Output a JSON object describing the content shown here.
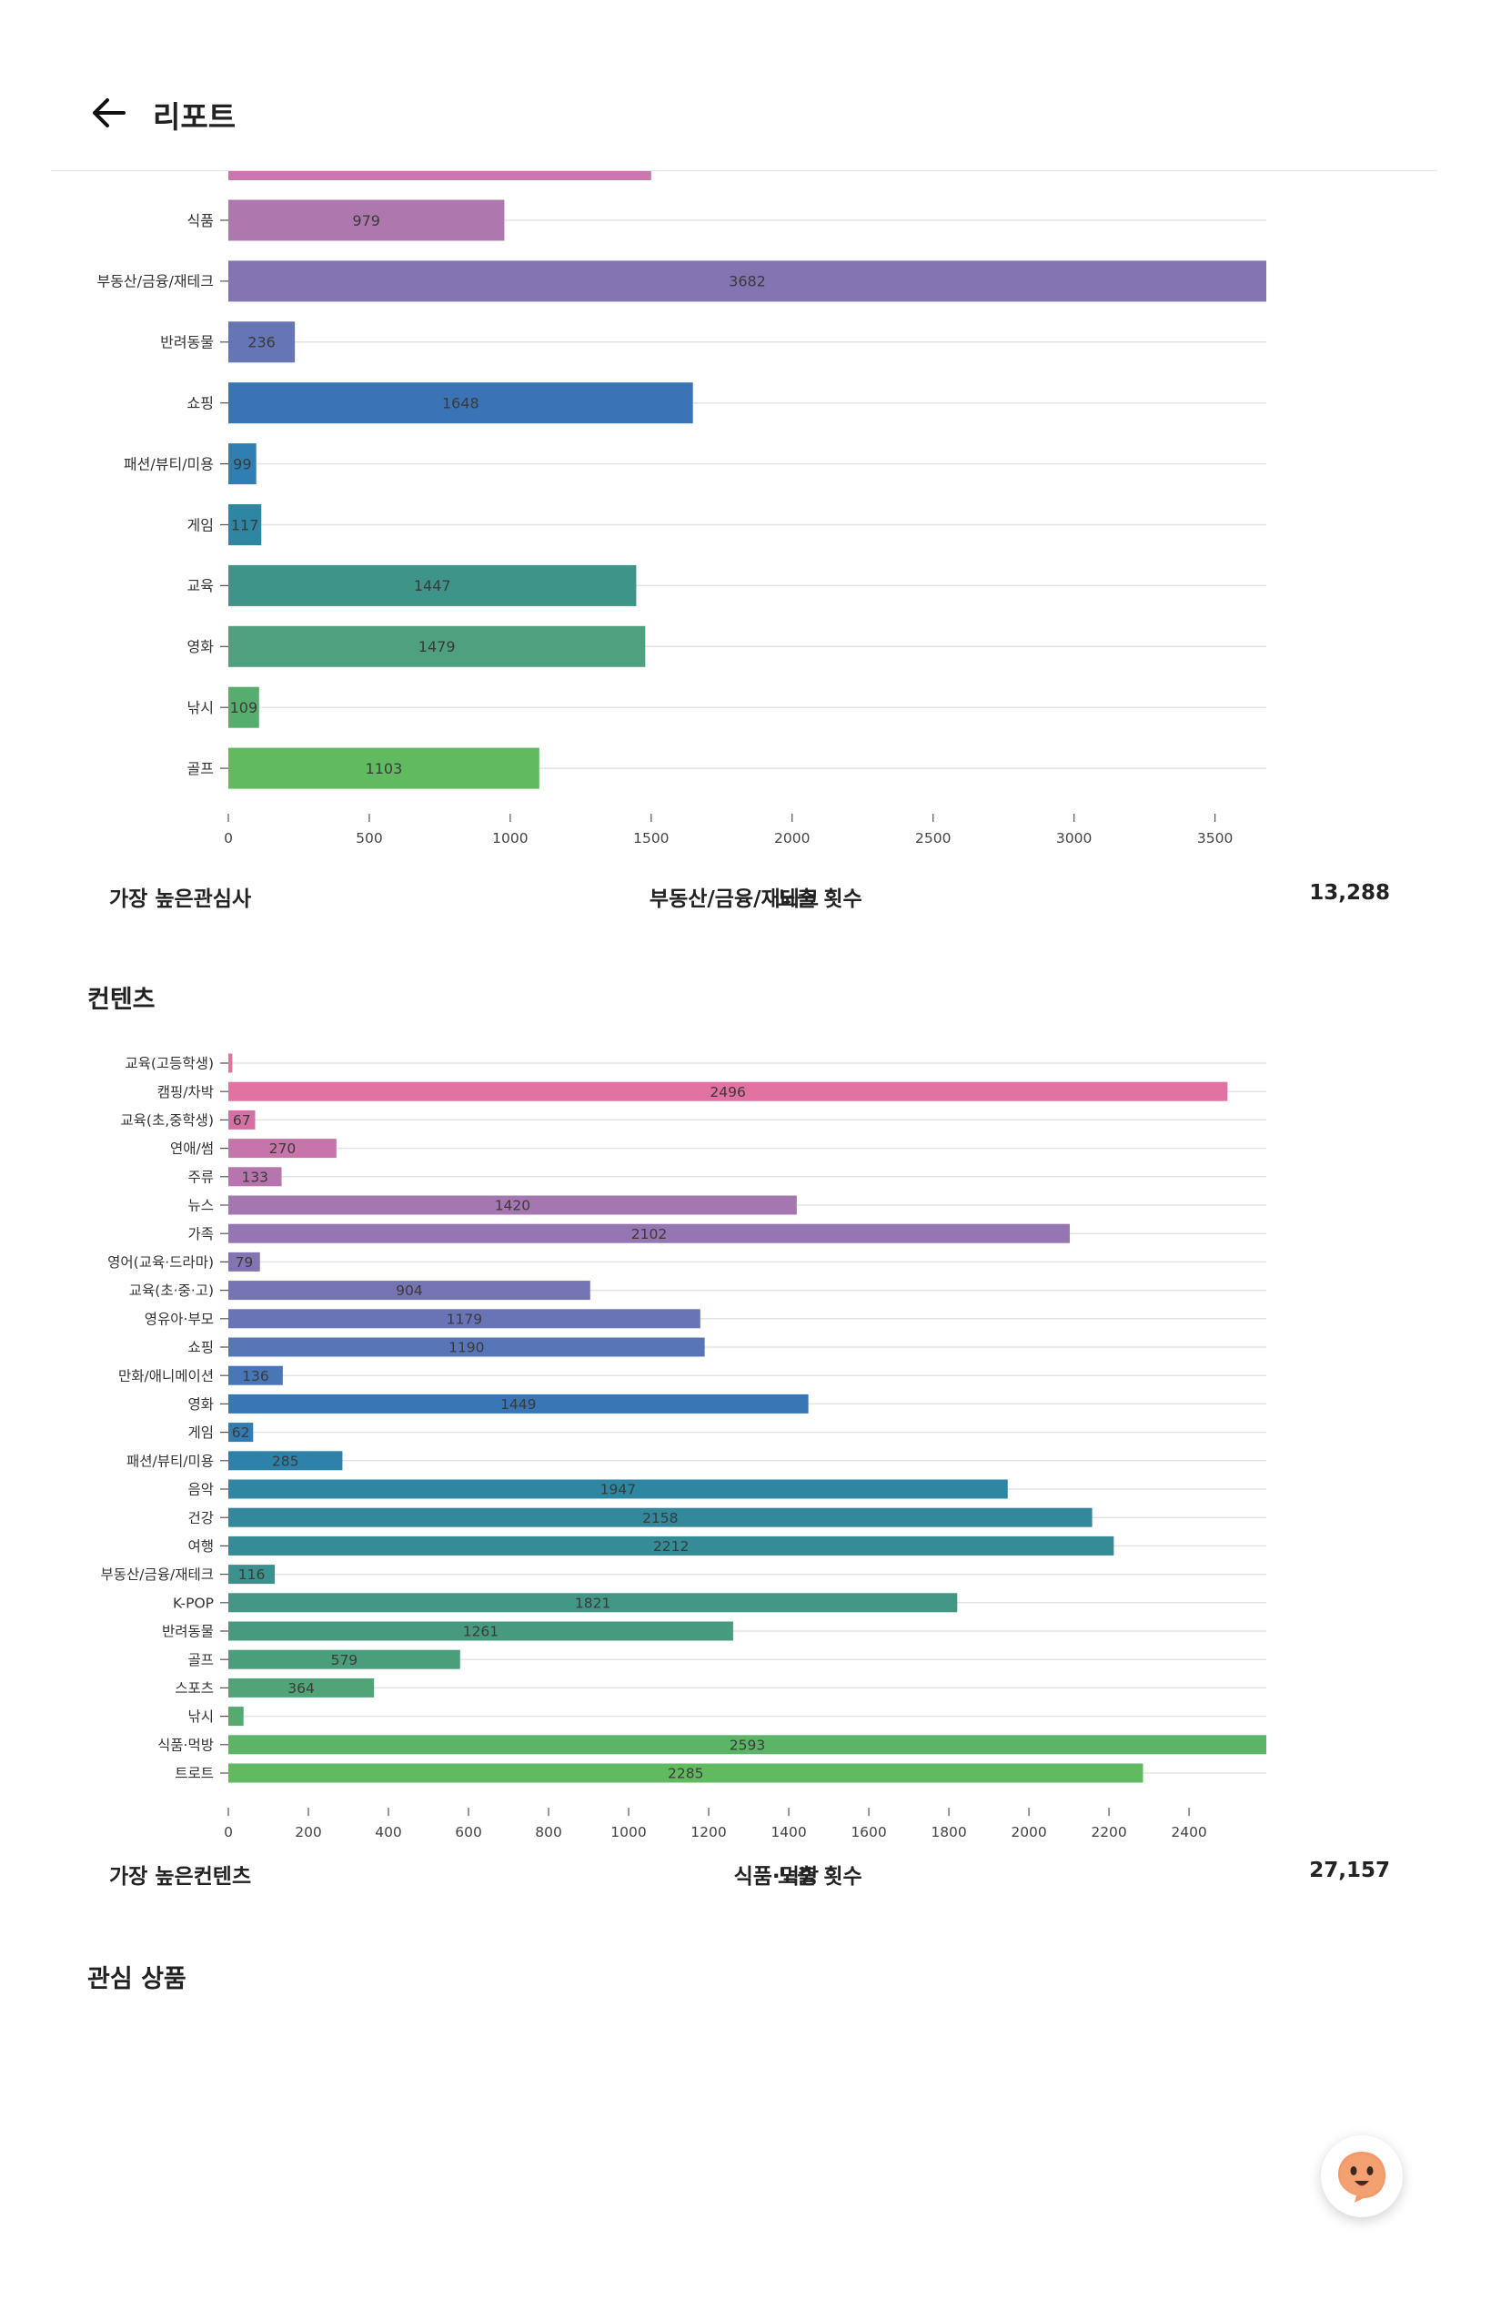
{
  "header": {
    "title": "리포트",
    "back_icon": "arrow-left-icon"
  },
  "interest_chart": {
    "chart_data": {
      "type": "bar",
      "orientation": "horizontal",
      "categories": [
        "식품",
        "부동산/금융/재테크",
        "반려동물",
        "쇼핑",
        "패션/뷰티/미용",
        "게임",
        "교육",
        "영화",
        "낚시",
        "골프"
      ],
      "values": [
        979,
        3682,
        236,
        1648,
        99,
        117,
        1447,
        1479,
        109,
        1103
      ],
      "partial_top_bar": {
        "value": 1500,
        "color": "#c978ad"
      },
      "colors": [
        "#ad78ad",
        "#8474b2",
        "#6575b5",
        "#3a74b6",
        "#2f7fb2",
        "#2e87a2",
        "#3e9489",
        "#4ea07f",
        "#55ad6e",
        "#62ba60"
      ],
      "xlim": [
        0,
        3682
      ],
      "xticks": [
        0,
        500,
        1000,
        1500,
        2000,
        2500,
        3000,
        3500
      ],
      "grid": true
    }
  },
  "interest_summary": {
    "label": "가장 높은관심사",
    "value": "부동산/금융/재테크",
    "count_label": "노출 횟수",
    "count": "13,288"
  },
  "contents_section": {
    "title": "컨텐츠"
  },
  "contents_chart": {
    "chart_data": {
      "type": "bar",
      "orientation": "horizontal",
      "categories": [
        "교육(고등학생)",
        "캠핑/차박",
        "교육(초,중학생)",
        "연애/썸",
        "주류",
        "뉴스",
        "가족",
        "영어(교육·드라마)",
        "교육(초·중·고)",
        "영유아·부모",
        "쇼핑",
        "만화/애니메이션",
        "영화",
        "게임",
        "패션/뷰티/미용",
        "음악",
        "건강",
        "여행",
        "부동산/금융/재테크",
        "K-POP",
        "반려동물",
        "골프",
        "스포츠",
        "낚시",
        "식품·먹방",
        "트로트"
      ],
      "values": [
        10,
        2496,
        67,
        270,
        133,
        1420,
        2102,
        79,
        904,
        1179,
        1190,
        136,
        1449,
        62,
        285,
        1947,
        2158,
        2212,
        116,
        1821,
        1261,
        579,
        364,
        38,
        2593,
        2285
      ],
      "hidden_value_labels": [
        0,
        23
      ],
      "colors": [
        "#e172a1",
        "#e172a1",
        "#d371a5",
        "#c774aa",
        "#b775ae",
        "#a577b0",
        "#9575b2",
        "#8574b2",
        "#7574b3",
        "#6874b6",
        "#5875b7",
        "#4876b7",
        "#3876b6",
        "#2f7cb2",
        "#2e82aa",
        "#2e87a2",
        "#32899c",
        "#368c96",
        "#3b918d",
        "#429685",
        "#479a80",
        "#4b9e7c",
        "#51a477",
        "#55aa70",
        "#5cb466",
        "#62ba60"
      ],
      "xlim": [
        0,
        2593
      ],
      "xticks": [
        0,
        200,
        400,
        600,
        800,
        1000,
        1200,
        1400,
        1600,
        1800,
        2000,
        2200,
        2400
      ],
      "grid": true
    }
  },
  "contents_summary": {
    "label": "가장 높은컨텐츠",
    "value": "식품·먹방",
    "count_label": "노출 횟수",
    "count": "27,157"
  },
  "products_section": {
    "title": "관심 상품"
  },
  "fab": {
    "icon": "chatbot-face-icon"
  }
}
